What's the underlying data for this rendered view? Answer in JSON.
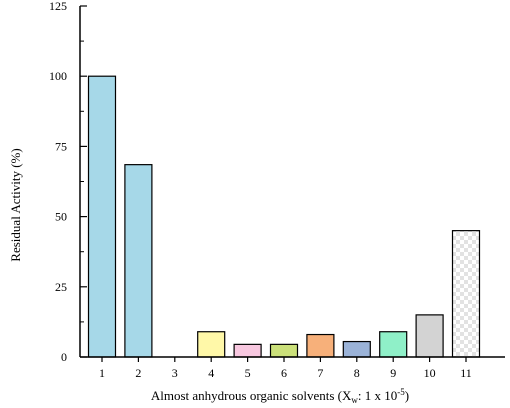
{
  "chart_data": {
    "type": "bar",
    "xlabel_main": "Almost anhydrous organic solvents (X",
    "xlabel_sub": "w",
    "xlabel_mid": ": 1 x 10",
    "xlabel_sup": "-5",
    "xlabel_end": ")",
    "ylabel": "Residual Activity (%)",
    "ylim": [
      0,
      125
    ],
    "yticks": [
      0,
      25,
      50,
      75,
      100,
      125
    ],
    "categories": [
      "1",
      "2",
      "3",
      "4",
      "5",
      "6",
      "7",
      "8",
      "9",
      "10",
      "11"
    ],
    "values": [
      100,
      68.5,
      0,
      9,
      4.5,
      4.5,
      8,
      5.5,
      9,
      15,
      45
    ],
    "bar_colors": [
      "#a6d8e8",
      "#a6d8e8",
      "#ffffff",
      "#fff8a8",
      "#f8c8e0",
      "#cbe07a",
      "#f7b07a",
      "#9bb3d8",
      "#8ff0c8",
      "#d3d3d3",
      "pattern-check"
    ]
  }
}
